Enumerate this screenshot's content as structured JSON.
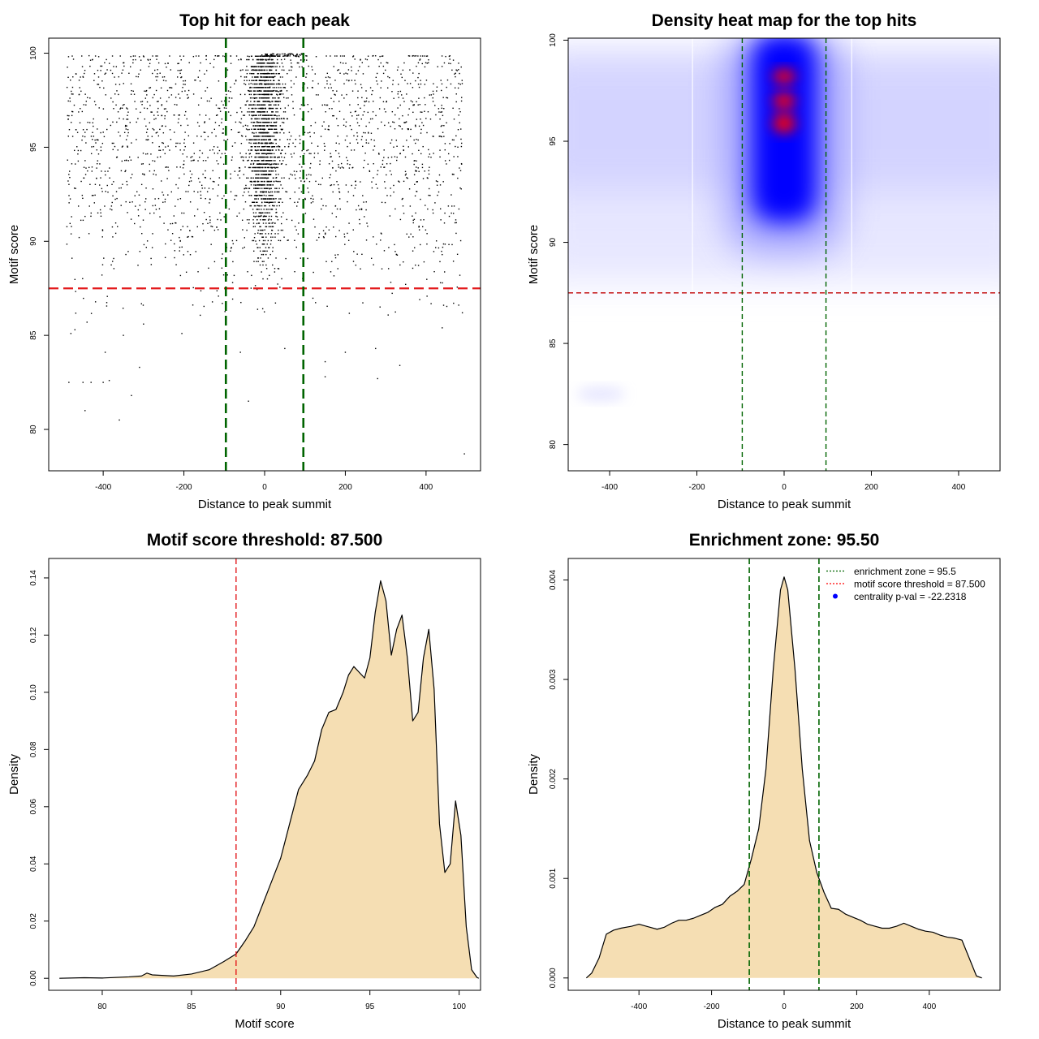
{
  "chart_data": [
    {
      "type": "scatter",
      "title": "Top hit for each peak",
      "xlabel": "Distance to peak summit",
      "ylabel": "Motif score",
      "xlim": [
        -535,
        535
      ],
      "ylim": [
        77.8,
        100.8
      ],
      "xticks": [
        -400,
        -200,
        0,
        200,
        400
      ],
      "yticks": [
        80,
        85,
        90,
        95,
        100
      ],
      "threshold_score": 87.5,
      "enrichment_zone": [
        -96,
        96
      ],
      "outlier_points": [
        {
          "x": -480,
          "y": 85.1
        },
        {
          "x": -470,
          "y": 85.3
        },
        {
          "x": -440,
          "y": 85.7
        },
        {
          "x": -395,
          "y": 84.1
        },
        {
          "x": -350,
          "y": 85.0
        },
        {
          "x": -300,
          "y": 85.6
        },
        {
          "x": -205,
          "y": 85.1
        },
        {
          "x": -60,
          "y": 84.1
        },
        {
          "x": 50,
          "y": 84.3
        },
        {
          "x": 150,
          "y": 83.6
        },
        {
          "x": 200,
          "y": 84.1
        },
        {
          "x": 275,
          "y": 84.3
        },
        {
          "x": 335,
          "y": 83.4
        },
        {
          "x": 440,
          "y": 85.4
        },
        {
          "x": 490,
          "y": 86.2
        },
        {
          "x": -485,
          "y": 82.5
        },
        {
          "x": -450,
          "y": 82.5
        },
        {
          "x": -430,
          "y": 82.5
        },
        {
          "x": -400,
          "y": 82.5
        },
        {
          "x": -385,
          "y": 82.6
        },
        {
          "x": -330,
          "y": 81.8
        },
        {
          "x": -360,
          "y": 80.5
        },
        {
          "x": -445,
          "y": 81.0
        },
        {
          "x": -310,
          "y": 83.3
        },
        {
          "x": -40,
          "y": 81.5
        },
        {
          "x": 150,
          "y": 82.8
        },
        {
          "x": 280,
          "y": 82.7
        },
        {
          "x": 495,
          "y": 78.7
        }
      ]
    },
    {
      "type": "heatmap",
      "title": "Density heat map for the top hits",
      "xlabel": "Distance to peak summit",
      "ylabel": "Motif score",
      "xlim": [
        -495,
        495
      ],
      "ylim": [
        78.7,
        100.1
      ],
      "xticks": [
        -400,
        -200,
        0,
        200,
        400
      ],
      "yticks": [
        80,
        85,
        90,
        95,
        100
      ],
      "threshold_score": 87.5,
      "enrichment_zone": [
        -96,
        96
      ],
      "colors": {
        "low": "#ffffff",
        "mid": "#0000ff",
        "high": "#ff0000"
      }
    },
    {
      "type": "area",
      "title": "Motif score threshold: 87.500",
      "xlabel": "Motif score",
      "ylabel": "Density",
      "xlim": [
        77.0,
        101.2
      ],
      "ylim": [
        -0.0042,
        0.1468
      ],
      "xticks": [
        80,
        85,
        90,
        95,
        100
      ],
      "yticks": [
        0.0,
        0.02,
        0.04,
        0.06,
        0.08,
        0.1,
        0.12,
        0.14
      ],
      "ytick_labels": [
        "0.00",
        "0.02",
        "0.04",
        "0.06",
        "0.08",
        "0.10",
        "0.12",
        "0.14"
      ],
      "threshold_score": 87.5,
      "fill_color": "#f5deb3",
      "x": [
        77.6,
        79.0,
        80.0,
        81.5,
        82.2,
        82.5,
        82.8,
        84.0,
        85.0,
        86.0,
        86.8,
        87.5,
        88.0,
        88.5,
        89.0,
        89.5,
        90.0,
        90.5,
        91.0,
        91.5,
        91.9,
        92.3,
        92.7,
        93.1,
        93.5,
        93.8,
        94.1,
        94.4,
        94.7,
        95.0,
        95.3,
        95.6,
        95.9,
        96.2,
        96.5,
        96.8,
        97.1,
        97.4,
        97.7,
        98.0,
        98.3,
        98.6,
        98.9,
        99.2,
        99.5,
        99.8,
        100.1,
        100.4,
        100.7,
        101.0,
        101.1
      ],
      "y": [
        0.0,
        0.0002,
        0.0001,
        0.0005,
        0.0008,
        0.0018,
        0.0012,
        0.0008,
        0.0015,
        0.003,
        0.0058,
        0.0085,
        0.013,
        0.018,
        0.026,
        0.034,
        0.042,
        0.054,
        0.066,
        0.071,
        0.076,
        0.087,
        0.093,
        0.094,
        0.1,
        0.106,
        0.109,
        0.107,
        0.105,
        0.112,
        0.128,
        0.139,
        0.132,
        0.113,
        0.122,
        0.127,
        0.112,
        0.09,
        0.093,
        0.112,
        0.122,
        0.101,
        0.054,
        0.037,
        0.04,
        0.062,
        0.05,
        0.018,
        0.003,
        0.0003,
        0.0
      ]
    },
    {
      "type": "area",
      "title": "Enrichment zone: 95.50",
      "xlabel": "Distance to peak summit",
      "ylabel": "Density",
      "xlim": [
        -595,
        595
      ],
      "ylim": [
        -0.000124,
        0.004216
      ],
      "xticks": [
        -400,
        -200,
        0,
        200,
        400
      ],
      "yticks": [
        0.0,
        0.001,
        0.002,
        0.003,
        0.004
      ],
      "ytick_labels": [
        "0.000",
        "0.001",
        "0.002",
        "0.003",
        "0.004"
      ],
      "enrichment_zone": [
        -96,
        96
      ],
      "fill_color": "#f5deb3",
      "legend": {
        "position": "top-right",
        "entries": [
          {
            "label": "enrichment zone = 95.5",
            "color": "#006400",
            "style": "dotted-line"
          },
          {
            "label": "motif score threshold = 87.500",
            "color": "#ff0000",
            "style": "dotted-line"
          },
          {
            "label": "centrality p-val = -22.2318",
            "color": "#0000ff",
            "style": "point"
          }
        ]
      },
      "x": [
        -545,
        -530,
        -510,
        -490,
        -470,
        -450,
        -420,
        -400,
        -380,
        -350,
        -330,
        -310,
        -290,
        -270,
        -250,
        -230,
        -210,
        -190,
        -170,
        -150,
        -130,
        -110,
        -90,
        -70,
        -50,
        -30,
        -10,
        0,
        10,
        30,
        50,
        70,
        90,
        110,
        130,
        150,
        170,
        190,
        210,
        230,
        250,
        270,
        290,
        310,
        330,
        350,
        370,
        390,
        410,
        430,
        450,
        470,
        490,
        510,
        530,
        545
      ],
      "y": [
        0.0,
        5e-05,
        0.0002,
        0.00044,
        0.00048,
        0.0005,
        0.00052,
        0.00054,
        0.00052,
        0.00049,
        0.00051,
        0.00055,
        0.00058,
        0.00058,
        0.0006,
        0.00063,
        0.00066,
        0.00071,
        0.00074,
        0.00082,
        0.00087,
        0.00094,
        0.0012,
        0.0015,
        0.0021,
        0.0031,
        0.0039,
        0.00403,
        0.0039,
        0.0031,
        0.0021,
        0.00138,
        0.00106,
        0.00086,
        0.0007,
        0.00069,
        0.00064,
        0.00061,
        0.00058,
        0.00054,
        0.00052,
        0.0005,
        0.0005,
        0.00052,
        0.00055,
        0.00052,
        0.00049,
        0.00047,
        0.00046,
        0.00043,
        0.00041,
        0.0004,
        0.00038,
        0.0002,
        2e-05,
        0.0
      ]
    }
  ]
}
